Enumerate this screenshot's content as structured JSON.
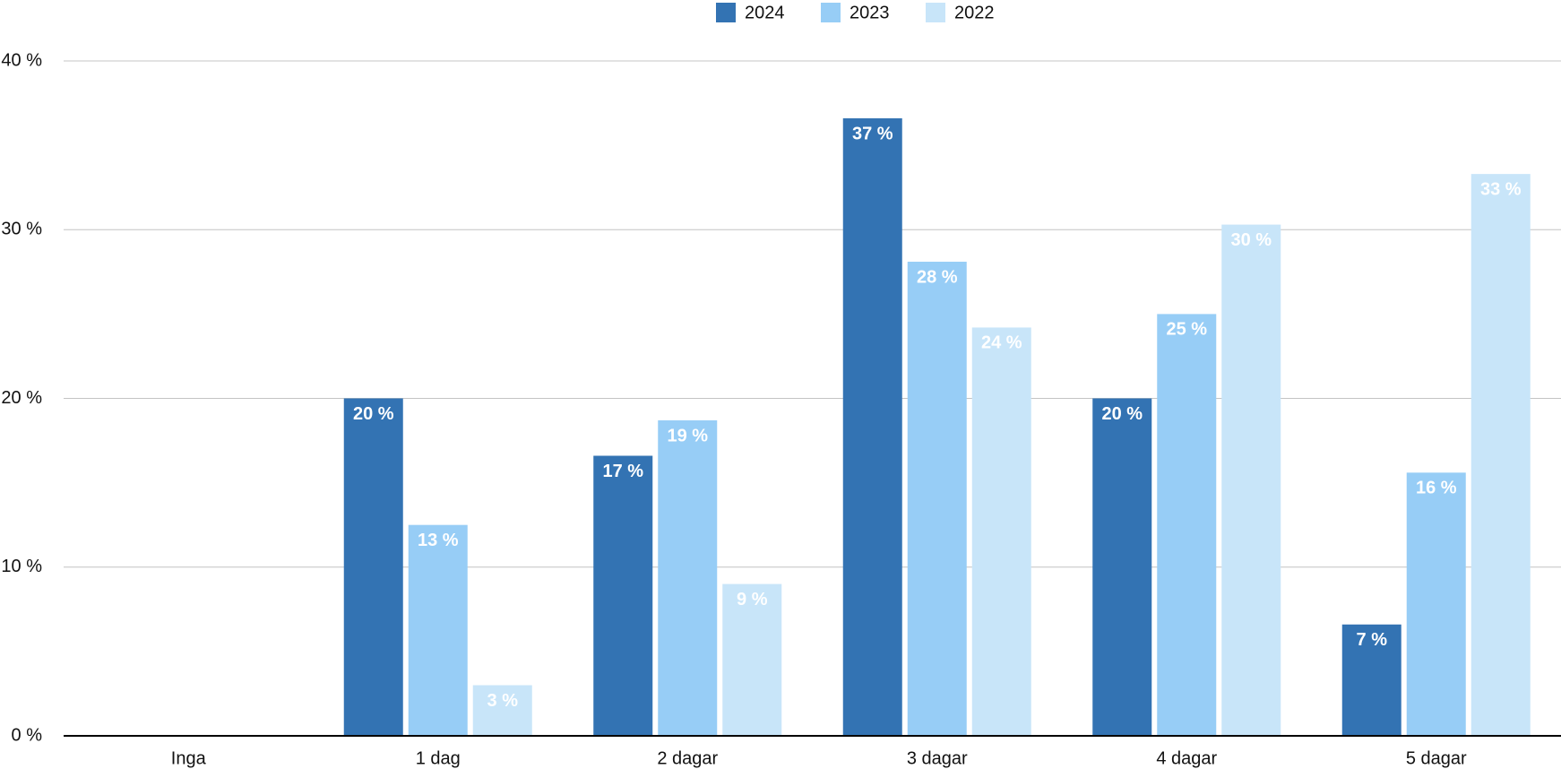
{
  "chart_data": {
    "type": "bar",
    "categories": [
      "Inga",
      "1 dag",
      "2 dagar",
      "3 dagar",
      "4 dagar",
      "5 dagar"
    ],
    "series": [
      {
        "name": "2024",
        "color": "#3373b3",
        "values": [
          0,
          20.0,
          16.6,
          36.6,
          20.0,
          6.6
        ],
        "value_labels": [
          null,
          "20 %",
          "17 %",
          "37 %",
          "20 %",
          "7 %"
        ]
      },
      {
        "name": "2023",
        "color": "#97cdf6",
        "values": [
          0,
          12.5,
          18.7,
          28.1,
          25.0,
          15.6
        ],
        "value_labels": [
          null,
          "13 %",
          "19 %",
          "28 %",
          "25 %",
          "16 %"
        ]
      },
      {
        "name": "2022",
        "color": "#c8e5f9",
        "values": [
          0,
          3.0,
          9.0,
          24.2,
          30.3,
          33.3
        ],
        "value_labels": [
          null,
          "3 %",
          "9 %",
          "24 %",
          "30 %",
          "33 %"
        ]
      }
    ],
    "ylim": [
      0,
      40
    ],
    "yticks": [
      {
        "value": 0,
        "label": "0 %"
      },
      {
        "value": 10,
        "label": "10 %"
      },
      {
        "value": 20,
        "label": "20 %"
      },
      {
        "value": 30,
        "label": "30 %"
      },
      {
        "value": 40,
        "label": "40 %"
      }
    ],
    "grid": true,
    "legend": "top"
  }
}
